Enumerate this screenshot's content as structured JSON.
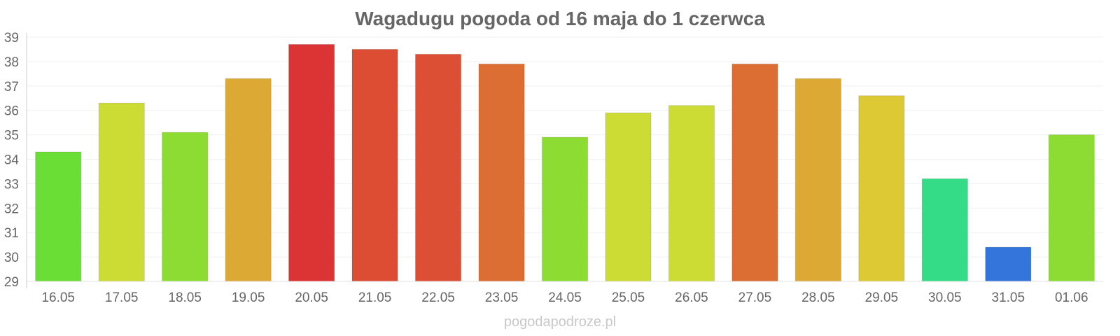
{
  "chart_data": {
    "type": "bar",
    "title": "Wagadugu pogoda od 16 maja do 1 czerwca",
    "xlabel": "",
    "ylabel": "",
    "categories": [
      "16.05",
      "17.05",
      "18.05",
      "19.05",
      "20.05",
      "21.05",
      "22.05",
      "23.05",
      "24.05",
      "25.05",
      "26.05",
      "27.05",
      "28.05",
      "29.05",
      "30.05",
      "31.05",
      "01.06"
    ],
    "values": [
      34.3,
      36.3,
      35.1,
      37.3,
      38.7,
      38.5,
      38.3,
      37.9,
      34.9,
      35.9,
      36.2,
      37.9,
      37.3,
      36.6,
      33.2,
      30.4,
      35.0
    ],
    "colors": [
      "#6ade34",
      "#ccdc34",
      "#8ddc34",
      "#dca934",
      "#dc3434",
      "#dc4d34",
      "#dc4f34",
      "#dc6e34",
      "#8ddc34",
      "#ccdc34",
      "#ccdc34",
      "#dc6e34",
      "#dca934",
      "#dcc934",
      "#34dc87",
      "#3475dc",
      "#8ddc34"
    ],
    "ylim": [
      29,
      39
    ],
    "yticks": [
      "29",
      "30",
      "31",
      "32",
      "33",
      "34",
      "35",
      "36",
      "37",
      "38",
      "39"
    ],
    "grid": true,
    "legend": "none"
  },
  "watermark": "pogodapodroze.pl"
}
